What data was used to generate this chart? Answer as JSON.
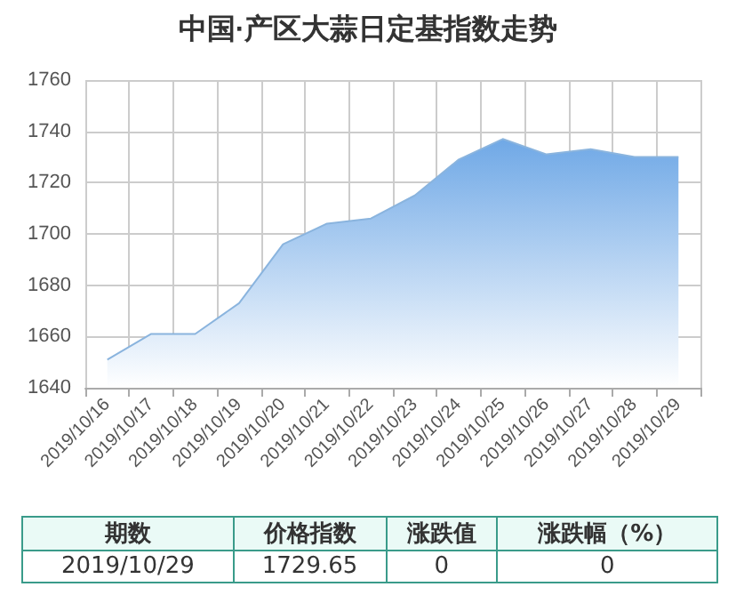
{
  "chart_data": {
    "type": "area",
    "title": "中国·产区大蒜日定基指数走势",
    "categories": [
      "2019/10/16",
      "2019/10/17",
      "2019/10/18",
      "2019/10/19",
      "2019/10/20",
      "2019/10/21",
      "2019/10/22",
      "2019/10/23",
      "2019/10/24",
      "2019/10/25",
      "2019/10/26",
      "2019/10/27",
      "2019/10/28",
      "2019/10/29"
    ],
    "series": [
      {
        "color": "#6fa8e6",
        "values": [
          1651,
          1661,
          1661,
          1673,
          1696,
          1704,
          1706,
          1715,
          1729,
          1737,
          1731,
          1733,
          1730,
          1730
        ]
      }
    ],
    "ylim": [
      1640,
      1760
    ],
    "yticks": [
      1640,
      1660,
      1680,
      1700,
      1720,
      1740,
      1760
    ],
    "grid": true,
    "annotations": [
      "期数",
      "价格指数",
      "涨跌值",
      "涨跌幅（%）",
      "2019/10/29",
      "1729.65",
      "0",
      "0"
    ]
  }
}
